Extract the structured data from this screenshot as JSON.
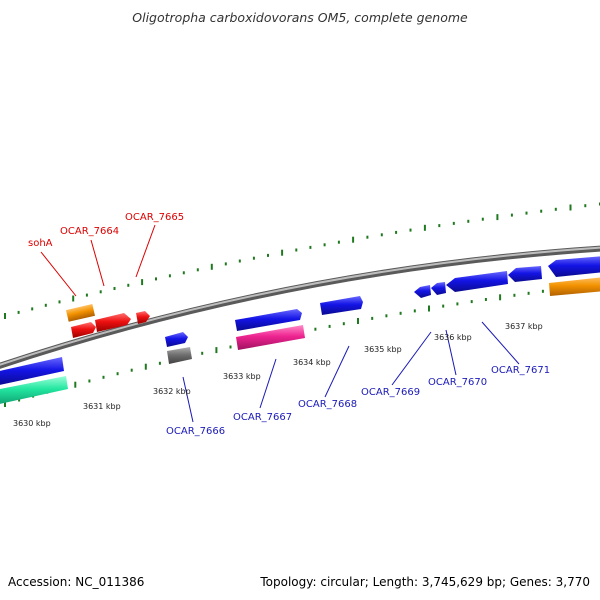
{
  "title": "Oligotropha carboxidovorans OM5, complete genome",
  "footer": {
    "accession": "Accession: NC_011386",
    "summary": "Topology: circular; Length: 3,745,629 bp; Genes: 3,770"
  },
  "colors": {
    "backbone": "#8a8a8a",
    "ticks": "#1f7a1f",
    "gene_blue": "#1414e6",
    "gene_red": "#ee1010",
    "gene_orange": "#f29200",
    "gene_green": "#22e6a0",
    "gene_pink": "#ee2490",
    "gene_gray": "#707070",
    "label_red": "#dd0000",
    "label_blue": "#1a1ab8"
  },
  "kbp_labels": [
    "3630 kbp",
    "3631 kbp",
    "3632 kbp",
    "3633 kbp",
    "3634 kbp",
    "3635 kbp",
    "3636 kbp",
    "3637 kbp"
  ],
  "gene_labels": [
    {
      "text": "sohA",
      "color": "red"
    },
    {
      "text": "OCAR_7664",
      "color": "red"
    },
    {
      "text": "OCAR_7665",
      "color": "red"
    },
    {
      "text": "OCAR_7666",
      "color": "blue"
    },
    {
      "text": "OCAR_7667",
      "color": "blue"
    },
    {
      "text": "OCAR_7668",
      "color": "blue"
    },
    {
      "text": "OCAR_7669",
      "color": "blue"
    },
    {
      "text": "OCAR_7670",
      "color": "blue"
    },
    {
      "text": "OCAR_7671",
      "color": "blue"
    }
  ]
}
